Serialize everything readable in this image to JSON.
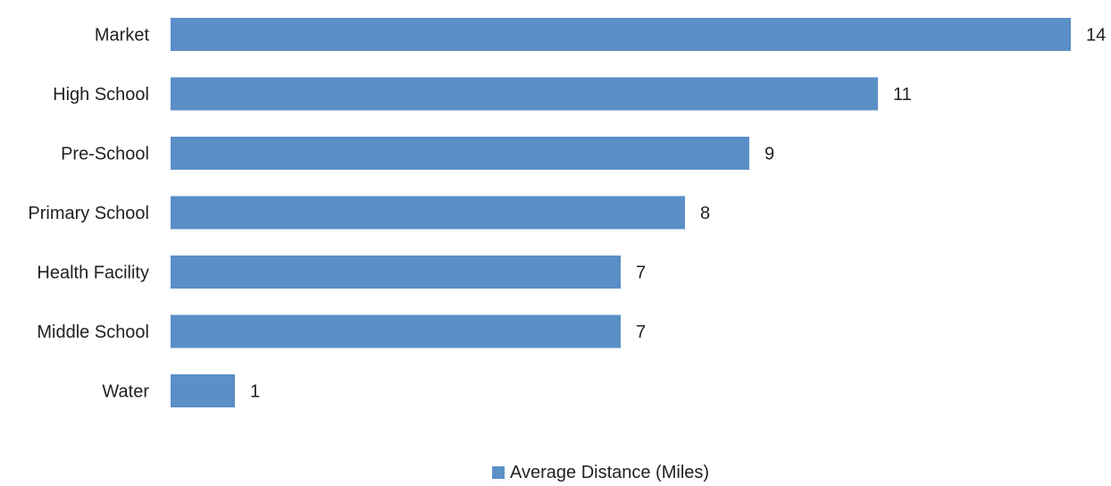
{
  "chart_data": {
    "type": "bar",
    "orientation": "horizontal",
    "categories": [
      "Market",
      "High School",
      "Pre-School",
      "Primary School",
      "Health Facility",
      "Middle School",
      "Water"
    ],
    "series": [
      {
        "name": "Average Distance (Miles)",
        "values": [
          14,
          11,
          9,
          8,
          7,
          7,
          1
        ],
        "color": "#5b8fc7"
      }
    ],
    "title": "",
    "xlabel": "",
    "ylabel": "",
    "xlim": [
      0,
      14
    ],
    "grid": false,
    "legend": "bottom"
  }
}
